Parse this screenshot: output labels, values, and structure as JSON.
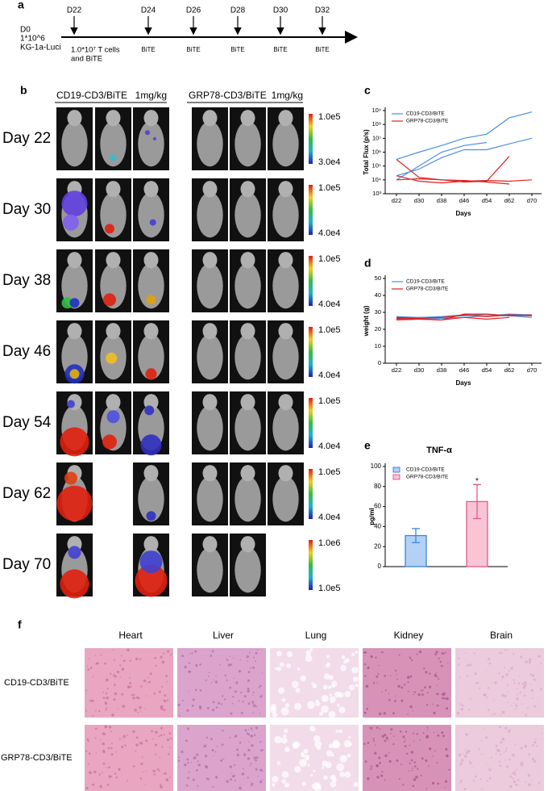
{
  "panel_a": {
    "label": "a",
    "start": [
      "D0",
      "1*10^6",
      "KG-1a-Luci"
    ],
    "events": [
      {
        "day": "D22",
        "note": [
          "1.0*10⁷ T cells",
          "and BiTE"
        ]
      },
      {
        "day": "D24",
        "note": [
          "BiTE"
        ]
      },
      {
        "day": "D26",
        "note": [
          "BiTE"
        ]
      },
      {
        "day": "D28",
        "note": [
          "BiTE"
        ]
      },
      {
        "day": "D30",
        "note": [
          "BiTE"
        ]
      },
      {
        "day": "D32",
        "note": [
          "BiTE"
        ]
      }
    ]
  },
  "panel_b": {
    "label": "b",
    "groups": [
      {
        "name": "CD19-CD3/BiTE",
        "dose": "1mg/kg"
      },
      {
        "name": "GRP78-CD3/BiTE",
        "dose": "1mg/kg"
      }
    ],
    "rows": [
      {
        "day": "Day 22",
        "scale_max": "1.0e5",
        "scale_min": "3.0e4"
      },
      {
        "day": "Day 30",
        "scale_max": "1.0e5",
        "scale_min": "4.0e4"
      },
      {
        "day": "Day 38",
        "scale_max": "1.0e5",
        "scale_min": "4.0e4"
      },
      {
        "day": "Day 46",
        "scale_max": "1.0e5",
        "scale_min": "4.0e4"
      },
      {
        "day": "Day 54",
        "scale_max": "1.0e5",
        "scale_min": "4.0e4"
      },
      {
        "day": "Day 62",
        "scale_max": "1.0e5",
        "scale_min": "4.0e4"
      },
      {
        "day": "Day 70",
        "scale_max": "1.0e6",
        "scale_min": "1.0e5"
      }
    ]
  },
  "chart_data": [
    {
      "type": "line",
      "panel_label": "c",
      "ylabel": "Total Flux (p/s)",
      "xlabel": "Days",
      "categories": [
        "d22",
        "d30",
        "d38",
        "d46",
        "d54",
        "d62",
        "d70"
      ],
      "log_scale": true,
      "ylim": [
        1000,
        1000000000
      ],
      "yticks": [
        {
          "value": 1000,
          "label": "10³"
        },
        {
          "value": 10000,
          "label": "10⁴"
        },
        {
          "value": 100000,
          "label": "10⁵"
        },
        {
          "value": 1000000,
          "label": "10⁶"
        },
        {
          "value": 10000000,
          "label": "10⁷"
        },
        {
          "value": 100000000,
          "label": "10⁸"
        },
        {
          "value": 1000000000,
          "label": "10⁹"
        }
      ],
      "legend": "upper left",
      "series": [
        {
          "name": "CD19-CD3/BiTE",
          "color": "#4a90e2",
          "lines": [
            [
              300000,
              1000000,
              3000000,
              10000000,
              20000000,
              300000000,
              800000000
            ],
            [
              20000,
              60000,
              400000,
              1500000,
              1500000,
              4000000,
              10000000
            ],
            [
              10000,
              100000,
              1000000,
              3000000,
              5000000,
              null,
              null
            ]
          ]
        },
        {
          "name": "GRP78-CD3/BiTE",
          "color": "#e02020",
          "lines": [
            [
              300000,
              15000,
              10000,
              7000,
              8000,
              500000,
              null
            ],
            [
              20000,
              8000,
              6000,
              8000,
              9000,
              8000,
              10000
            ],
            [
              10000,
              12000,
              10000,
              9000,
              7000,
              5000,
              null
            ]
          ]
        }
      ]
    },
    {
      "type": "line",
      "panel_label": "d",
      "ylabel": "weight (g)",
      "xlabel": "Days",
      "categories": [
        "d22",
        "d30",
        "d38",
        "d46",
        "d54",
        "d62",
        "d70"
      ],
      "ylim": [
        0,
        50
      ],
      "yticks": [
        0,
        10,
        20,
        30,
        40,
        50
      ],
      "legend": "upper left",
      "series": [
        {
          "name": "CD19-CD3/BiTE",
          "color": "#4a90e2",
          "lines": [
            [
              27,
              27,
              27,
              28,
              29,
              28,
              27
            ],
            [
              26,
              26,
              26.5,
              27,
              28,
              28,
              28
            ],
            [
              27.5,
              27,
              27.5,
              28.5,
              28,
              29,
              28.5
            ]
          ]
        },
        {
          "name": "GRP78-CD3/BiTE",
          "color": "#e02020",
          "lines": [
            [
              25.5,
              26,
              25.5,
              29,
              29,
              28,
              28.5
            ],
            [
              26.5,
              26,
              25.5,
              27,
              26,
              27,
              null
            ],
            [
              27,
              26.5,
              27,
              28.5,
              27.5,
              28.5,
              28
            ]
          ]
        }
      ]
    },
    {
      "type": "bar",
      "panel_label": "e",
      "title": "TNF-α",
      "ylabel": "pg/ml",
      "annotation": "*",
      "ylim": [
        0,
        100
      ],
      "yticks": [
        0,
        20,
        40,
        60,
        80,
        100
      ],
      "legend": "upper left",
      "series": [
        {
          "name": "CD19-CD3/BiTE",
          "color": "#3a86d6",
          "fill": "#b3d1f5",
          "values": [
            31
          ],
          "errors": [
            7
          ]
        },
        {
          "name": "GRP78-CD3/BiTE",
          "color": "#e4588b",
          "fill": "#f8c5d5",
          "values": [
            65
          ],
          "errors": [
            17
          ]
        }
      ]
    }
  ],
  "panel_f": {
    "label": "f",
    "columns": [
      "Heart",
      "Liver",
      "Lung",
      "Kidney",
      "Brain"
    ],
    "rows": [
      "CD19-CD3/BiTE",
      "GRP78-CD3/BiTE"
    ]
  }
}
